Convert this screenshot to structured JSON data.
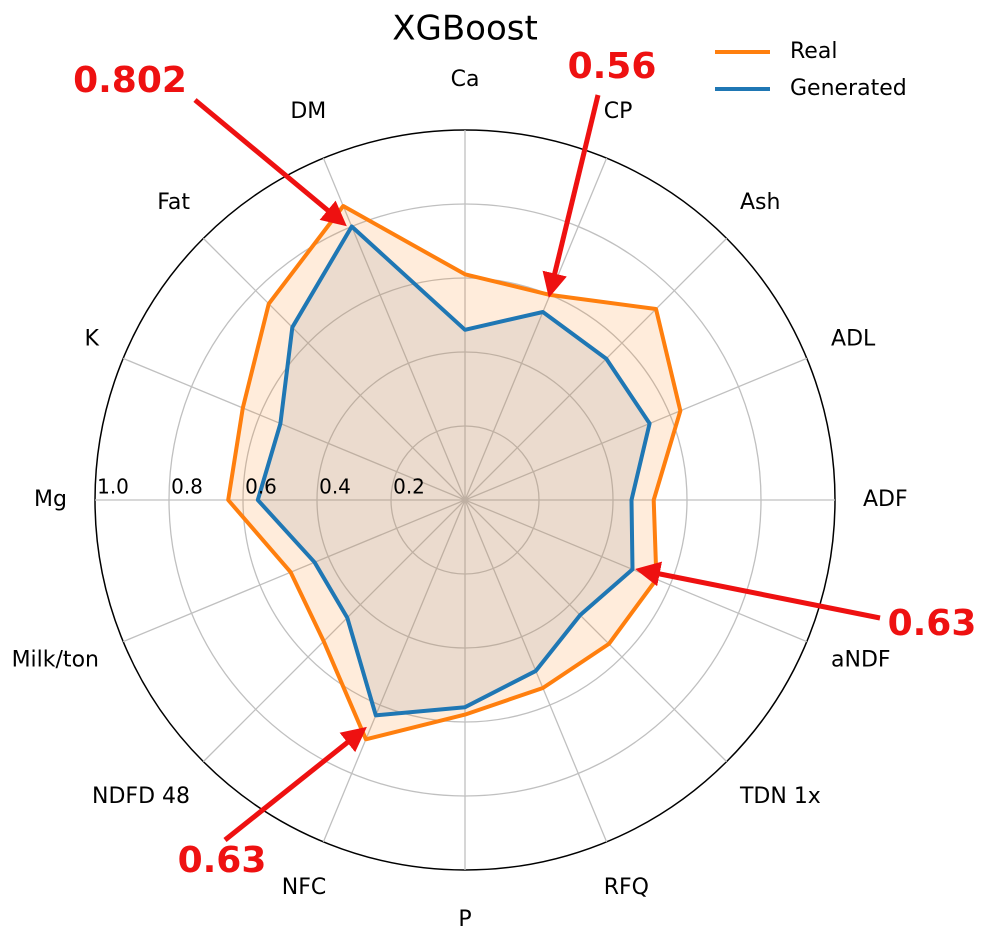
{
  "chart_data": {
    "type": "radar",
    "title": "XGBoost",
    "categories": [
      "Ca",
      "CP",
      "Ash",
      "ADL",
      "ADF",
      "aNDF",
      "TDN 1x",
      "RFQ",
      "P",
      "NFC",
      "NDFD 48",
      "Milk/ton",
      "Mg",
      "K",
      "Fat",
      "DM"
    ],
    "series": [
      {
        "name": "Real",
        "color": "#ff7f0e",
        "fill": "#ff7f0e",
        "values": [
          0.61,
          0.6,
          0.73,
          0.63,
          0.51,
          0.56,
          0.55,
          0.55,
          0.58,
          0.7,
          0.54,
          0.51,
          0.64,
          0.65,
          0.75,
          0.86
        ]
      },
      {
        "name": "Generated",
        "color": "#1f77b4",
        "fill": "#999999",
        "values": [
          0.46,
          0.55,
          0.54,
          0.54,
          0.45,
          0.49,
          0.44,
          0.5,
          0.56,
          0.63,
          0.45,
          0.44,
          0.56,
          0.54,
          0.66,
          0.8
        ]
      }
    ],
    "rlim": [
      0,
      1
    ],
    "rticks": [
      0.2,
      0.4,
      0.6,
      0.8,
      {
        "value": 1,
        "label": "1.0"
      }
    ],
    "grid": true,
    "legend": "upper right",
    "annotations": [
      "0.802",
      "0.56",
      "0.63",
      "0.63"
    ]
  }
}
